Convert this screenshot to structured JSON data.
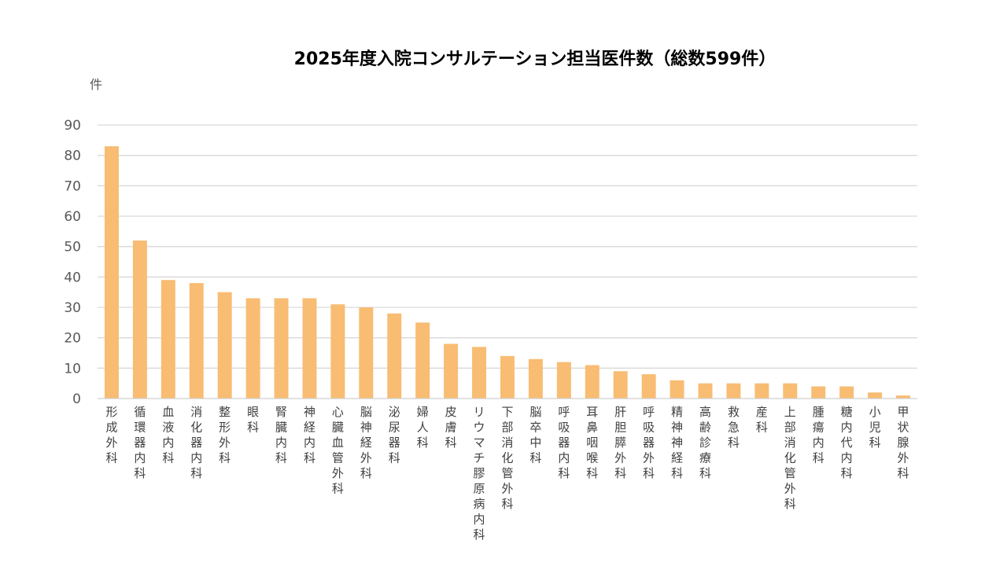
{
  "chart_data": {
    "type": "bar",
    "title": "2025年度入院コンサルテーション担当医件数（総数599件）",
    "ylabel": "件",
    "xlabel": "",
    "ylim": [
      0,
      90
    ],
    "yticks": [
      0,
      10,
      20,
      30,
      40,
      50,
      60,
      70,
      80,
      90
    ],
    "grid": true,
    "legend": "none",
    "bar_color": "#F8BC73",
    "categories": [
      "形成外科",
      "循環器内科",
      "血液内科",
      "消化器内科",
      "整形外科",
      "眼科",
      "腎臓内科",
      "神経内科",
      "心臓血管外科",
      "脳神経外科",
      "泌尿器科",
      "婦人科",
      "皮膚科",
      "リウマチ膠原病内科",
      "下部消化管外科",
      "脳卒中科",
      "呼吸器内科",
      "耳鼻咽喉科",
      "肝胆膵外科",
      "呼吸器外科",
      "精神神経科",
      "高齢診療科",
      "救急科",
      "産科",
      "上部消化管外科",
      "腫瘍内科",
      "糖内代内科",
      "小児科",
      "甲状腺外科"
    ],
    "values": [
      83,
      52,
      39,
      38,
      35,
      33,
      33,
      33,
      31,
      30,
      28,
      25,
      18,
      17,
      14,
      13,
      12,
      11,
      9,
      8,
      6,
      5,
      5,
      5,
      5,
      4,
      4,
      2,
      1
    ]
  }
}
